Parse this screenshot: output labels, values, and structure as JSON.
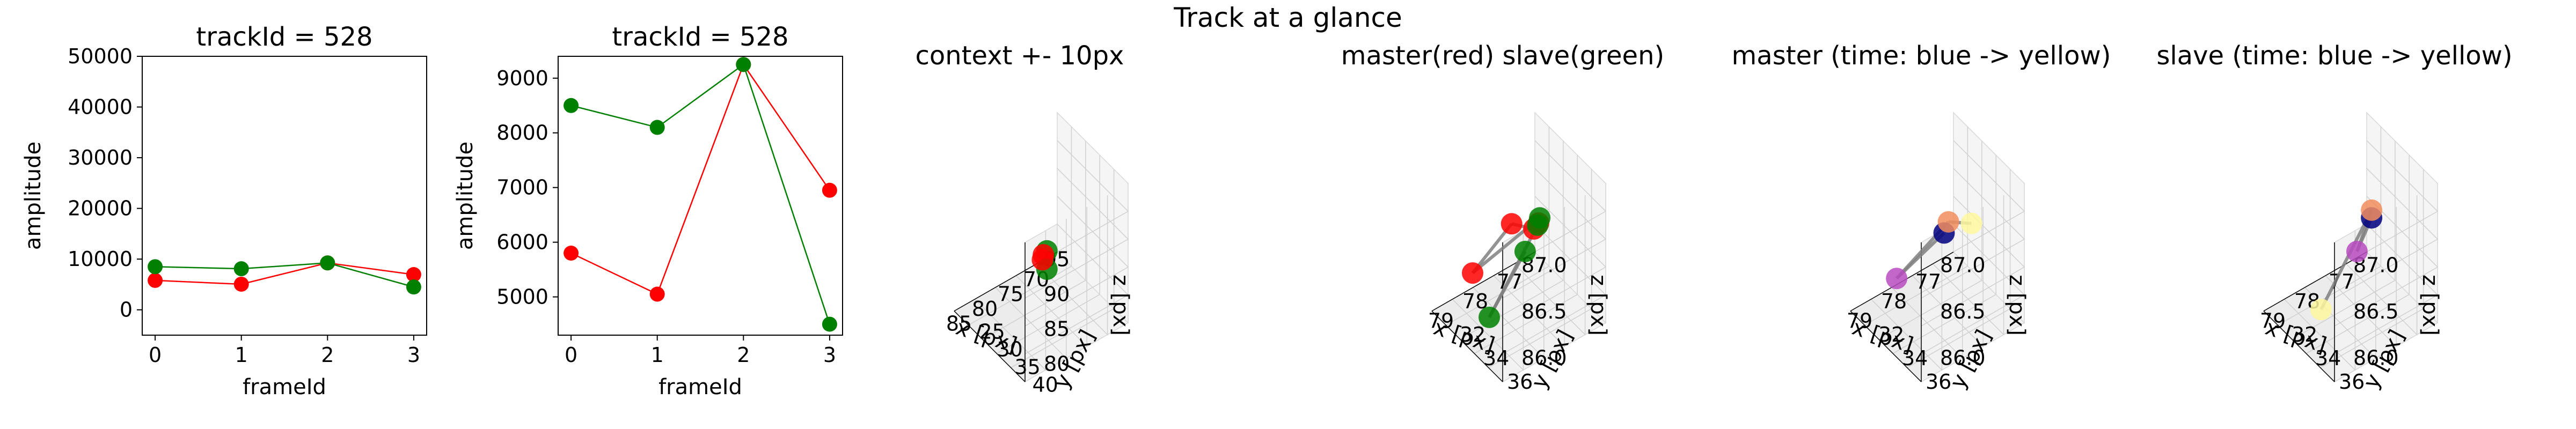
{
  "figure": {
    "title": "Track at a glance"
  },
  "colors": {
    "master": "#ff0000",
    "slave": "#008000",
    "link": "#808080",
    "time_start": "#000080",
    "time_mid": "#f28d5e",
    "time_end": "#fff8a0",
    "time_marker_end": "#b84bc0"
  },
  "chart_data": [
    {
      "type": "line",
      "title": "trackId = 528",
      "xlabel": "frameId",
      "ylabel": "amplitude",
      "x": [
        0,
        1,
        2,
        3
      ],
      "ylim": [
        -5000,
        50000
      ],
      "xticks": [
        "0",
        "1",
        "2",
        "3"
      ],
      "yticks": [
        "0",
        "10000",
        "20000",
        "30000",
        "40000",
        "50000"
      ],
      "series": [
        {
          "color": "#ff0000",
          "values": [
            5800,
            5050,
            9250,
            6950
          ]
        },
        {
          "color": "#008000",
          "values": [
            8500,
            8100,
            9250,
            4500
          ]
        }
      ]
    },
    {
      "type": "line",
      "title": "trackId = 528",
      "xlabel": "frameId",
      "ylabel": "amplitude",
      "x": [
        0,
        1,
        2,
        3
      ],
      "ylim": [
        4300,
        9400
      ],
      "xticks": [
        "0",
        "1",
        "2",
        "3"
      ],
      "yticks": [
        "5000",
        "6000",
        "7000",
        "8000",
        "9000"
      ],
      "series": [
        {
          "color": "#ff0000",
          "values": [
            5800,
            5050,
            9250,
            6950
          ]
        },
        {
          "color": "#008000",
          "values": [
            8500,
            8100,
            9250,
            4500
          ]
        }
      ]
    },
    {
      "type": "scatter",
      "title": "context +- 10px",
      "xlabel": "x [px]",
      "ylabel": "y [px]",
      "zlabel": "z [px]",
      "xticks": [
        "70",
        "75",
        "80",
        "85"
      ],
      "yticks": [
        "25",
        "30",
        "35",
        "40"
      ],
      "zticks": [
        "80",
        "85",
        "90",
        "95"
      ],
      "grid": true,
      "points": [
        {
          "x": 77.5,
          "y": 34,
          "z": 86.7,
          "color": "#008000"
        },
        {
          "x": 78.5,
          "y": 34.5,
          "z": 86.8,
          "color": "#ff0000"
        },
        {
          "x": 80,
          "y": 38,
          "z": 87,
          "color": "#008000"
        },
        {
          "x": 79,
          "y": 35,
          "z": 86.5,
          "color": "#ff0000"
        }
      ]
    },
    {
      "type": "scatter",
      "title": "master(red) slave(green)",
      "xlabel": "x [px]",
      "ylabel": "y [px]",
      "zlabel": "z [px]",
      "xticks": [
        "77",
        "78",
        "79"
      ],
      "yticks": [
        "32",
        "34",
        "36"
      ],
      "zticks": [
        "86.0",
        "86.5",
        "87.0"
      ],
      "grid": true,
      "points": [
        {
          "x": 77.6,
          "y": 33.5,
          "z": 86.4,
          "color": "#ff0000"
        },
        {
          "x": 78.5,
          "y": 35.5,
          "z": 86.8,
          "color": "#ff0000"
        },
        {
          "x": 78.7,
          "y": 34,
          "z": 86.7,
          "color": "#ff0000"
        },
        {
          "x": 79.1,
          "y": 31.5,
          "z": 85.8,
          "color": "#ff0000"
        },
        {
          "x": 78.3,
          "y": 35.5,
          "z": 86.9,
          "color": "#008000"
        },
        {
          "x": 78.0,
          "y": 34.5,
          "z": 86.6,
          "color": "#008000"
        },
        {
          "x": 80.2,
          "y": 36,
          "z": 86.1,
          "color": "#008000"
        },
        {
          "x": 77.5,
          "y": 32,
          "z": 85.8,
          "color": "#008000"
        }
      ]
    },
    {
      "type": "scatter",
      "title": "master (time: blue -> yellow)",
      "xlabel": "x [px]",
      "ylabel": "y [px]",
      "zlabel": "z [px]",
      "xticks": [
        "77",
        "78",
        "79"
      ],
      "yticks": [
        "32",
        "34",
        "36"
      ],
      "zticks": [
        "86.0",
        "86.5",
        "87.0"
      ],
      "grid": true,
      "points": [
        {
          "x": 78.6,
          "y": 35,
          "z": 86.7,
          "color": "#000080"
        },
        {
          "x": 79.1,
          "y": 32,
          "z": 85.8,
          "color": "#b84bc0"
        },
        {
          "x": 78.6,
          "y": 35.4,
          "z": 86.9,
          "color": "#f28d5e"
        },
        {
          "x": 77.3,
          "y": 34,
          "z": 86.4,
          "color": "#fff8a0"
        }
      ]
    },
    {
      "type": "scatter",
      "title": "slave (time: blue -> yellow)",
      "xlabel": "x [px]",
      "ylabel": "y [px]",
      "zlabel": "z [px]",
      "xticks": [
        "77",
        "78",
        "79"
      ],
      "yticks": [
        "32",
        "34",
        "36"
      ],
      "zticks": [
        "86.0",
        "86.5",
        "87.0"
      ],
      "grid": true,
      "points": [
        {
          "x": 78.3,
          "y": 35.5,
          "z": 86.9,
          "color": "#000080"
        },
        {
          "x": 77.5,
          "y": 32,
          "z": 85.8,
          "color": "#b84bc0"
        },
        {
          "x": 78.3,
          "y": 35.5,
          "z": 87.0,
          "color": "#f28d5e"
        },
        {
          "x": 80.2,
          "y": 36,
          "z": 86.2,
          "color": "#fff8a0"
        }
      ]
    }
  ]
}
